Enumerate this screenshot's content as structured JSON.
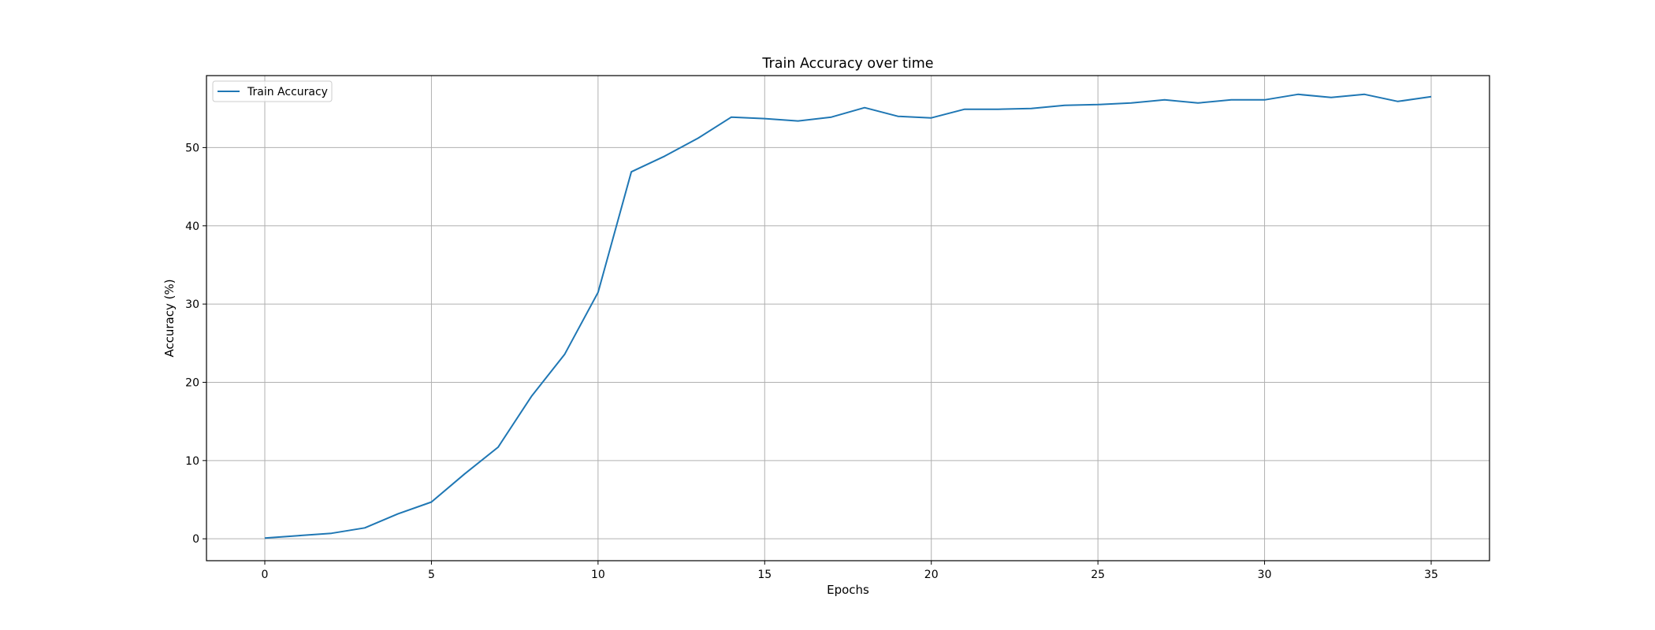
{
  "chart_data": {
    "type": "line",
    "title": "Train Accuracy over time",
    "xlabel": "Epochs",
    "ylabel": "Accuracy (%)",
    "xlim": [
      -1.75,
      36.75
    ],
    "ylim": [
      -2.8,
      59.2
    ],
    "xticks": [
      0,
      5,
      10,
      15,
      20,
      25,
      30,
      35
    ],
    "yticks": [
      0,
      10,
      20,
      30,
      40,
      50
    ],
    "grid": true,
    "legend_position": "upper left",
    "series": [
      {
        "name": "Train Accuracy",
        "color": "#1f77b4",
        "x": [
          0,
          1,
          2,
          3,
          4,
          5,
          6,
          7,
          8,
          9,
          10,
          11,
          12,
          13,
          14,
          15,
          16,
          17,
          18,
          19,
          20,
          21,
          22,
          23,
          24,
          25,
          26,
          27,
          28,
          29,
          30,
          31,
          32,
          33,
          34,
          35
        ],
        "y": [
          0.1,
          0.4,
          0.7,
          1.4,
          3.2,
          4.7,
          8.3,
          11.7,
          18.2,
          23.6,
          31.5,
          46.9,
          48.9,
          51.2,
          53.9,
          53.7,
          53.4,
          53.9,
          55.1,
          54.0,
          53.8,
          54.9,
          54.9,
          55.0,
          55.4,
          55.5,
          55.7,
          56.1,
          55.7,
          56.1,
          56.1,
          56.8,
          56.4,
          56.8,
          55.9,
          56.5
        ]
      }
    ]
  }
}
